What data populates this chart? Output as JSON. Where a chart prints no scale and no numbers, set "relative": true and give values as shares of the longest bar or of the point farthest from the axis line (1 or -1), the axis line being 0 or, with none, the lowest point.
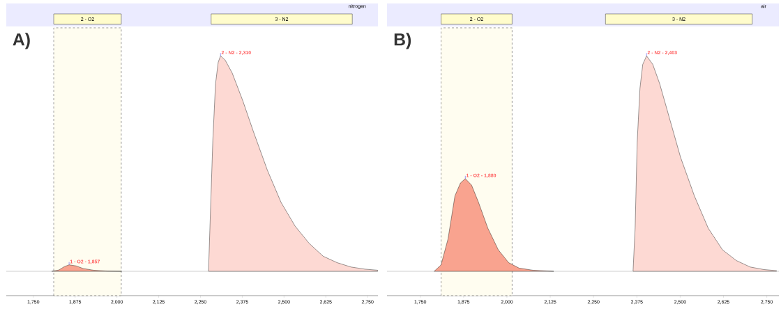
{
  "chart_data": [
    {
      "type": "area",
      "title": "A)",
      "subtitle": "nitrogen",
      "relative": true,
      "xlim": [
        1669,
        2781
      ],
      "xticks": [
        {
          "value": 1750,
          "label": "1,750"
        },
        {
          "value": 1875,
          "label": "1,875"
        },
        {
          "value": 2000,
          "label": "2,000"
        },
        {
          "value": 2125,
          "label": "2,125"
        },
        {
          "value": 2250,
          "label": "2,250"
        },
        {
          "value": 2375,
          "label": "2,375"
        },
        {
          "value": 2500,
          "label": "2,500"
        },
        {
          "value": 2625,
          "label": "2,625"
        },
        {
          "value": 2750,
          "label": "2,750"
        }
      ],
      "bands": [
        {
          "axis": "x",
          "from": 1811,
          "to": 2013,
          "label": "2 - O2",
          "color": "#fffdf0"
        }
      ],
      "series": [
        {
          "color": "#f9a38f",
          "x": [
            1805,
            1826,
            1843,
            1857,
            1878,
            1899,
            1930,
            1972,
            2014
          ],
          "values": [
            0,
            0.006,
            0.022,
            0.03,
            0.025,
            0.013,
            0.005,
            0.001,
            0
          ]
        },
        {
          "color": "#fdd9d3",
          "x": [
            2274,
            2278,
            2287,
            2295,
            2303,
            2310,
            2324,
            2345,
            2377,
            2408,
            2450,
            2491,
            2533,
            2575,
            2617,
            2659,
            2700,
            2742,
            2780
          ],
          "values": [
            0,
            0.19,
            0.61,
            0.87,
            0.97,
            1,
            0.98,
            0.92,
            0.79,
            0.65,
            0.47,
            0.32,
            0.21,
            0.13,
            0.07,
            0.04,
            0.02,
            0.01,
            0.005
          ]
        }
      ],
      "annotations": [
        {
          "text": "1 - O2 - 1,857",
          "x": 1857,
          "y": 0.03
        },
        {
          "text": "2 - N2 - 2,310",
          "x": 2310,
          "y": 1
        },
        "3 - N2"
      ]
    },
    {
      "type": "area",
      "title": "B)",
      "subtitle": "air",
      "relative": true,
      "xlim": [
        1654,
        2785
      ],
      "xticks": [
        {
          "value": 1750,
          "label": "1,750"
        },
        {
          "value": 1875,
          "label": "1,875"
        },
        {
          "value": 2000,
          "label": "2,000"
        },
        {
          "value": 2125,
          "label": "2,125"
        },
        {
          "value": 2250,
          "label": "2,250"
        },
        {
          "value": 2375,
          "label": "2,375"
        },
        {
          "value": 2500,
          "label": "2,500"
        },
        {
          "value": 2625,
          "label": "2,625"
        },
        {
          "value": 2750,
          "label": "2,750"
        }
      ],
      "bands": [
        {
          "axis": "x",
          "from": 1810,
          "to": 2015,
          "label": "2 - O2",
          "color": "#fffdf0"
        }
      ],
      "series": [
        {
          "color": "#f9a38f",
          "x": [
            1790,
            1810,
            1830,
            1850,
            1866,
            1880,
            1898,
            1918,
            1945,
            1975,
            2005,
            2035,
            2075,
            2135
          ],
          "values": [
            0,
            0.03,
            0.15,
            0.35,
            0.41,
            0.43,
            0.4,
            0.32,
            0.2,
            0.1,
            0.04,
            0.015,
            0.005,
            0
          ]
        },
        {
          "color": "#fdd9d3",
          "x": [
            2364,
            2370,
            2376,
            2384,
            2392,
            2403,
            2421,
            2441,
            2471,
            2501,
            2541,
            2581,
            2622,
            2662,
            2702,
            2742,
            2778
          ],
          "values": [
            0,
            0.2,
            0.6,
            0.85,
            0.96,
            1,
            0.96,
            0.87,
            0.7,
            0.53,
            0.35,
            0.2,
            0.1,
            0.05,
            0.02,
            0.008,
            0.003
          ]
        }
      ],
      "annotations": [
        {
          "text": "1 - O2 - 1,880",
          "x": 1880,
          "y": 0.43
        },
        {
          "text": "2 - N2 - 2,403",
          "x": 2403,
          "y": 1
        },
        "3 - N2"
      ]
    }
  ]
}
